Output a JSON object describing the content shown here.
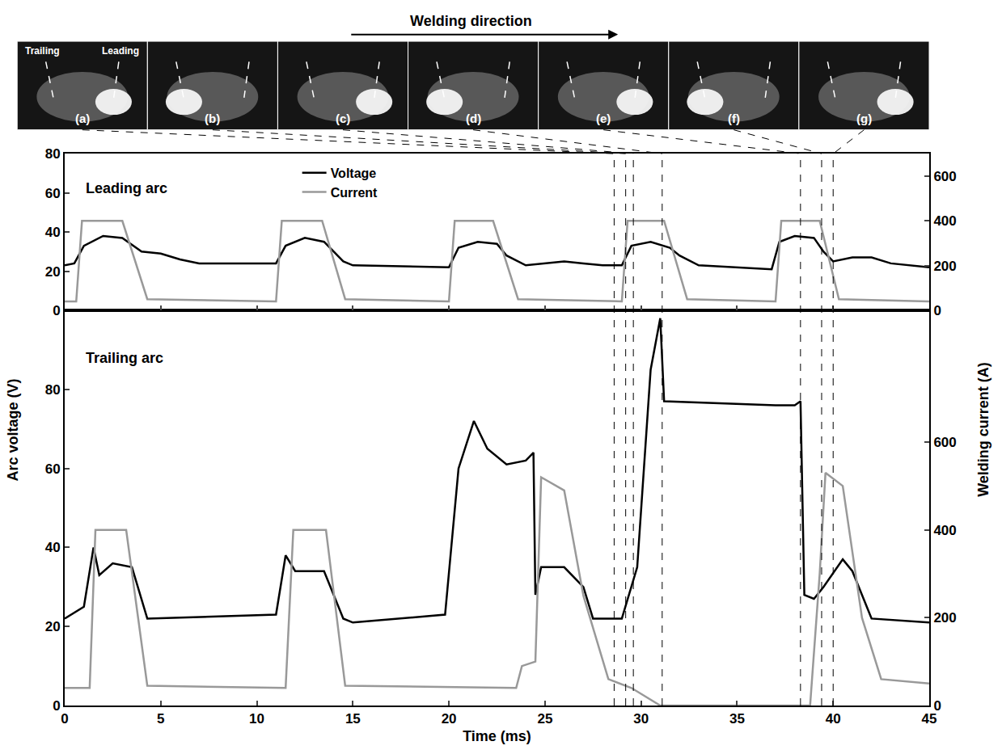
{
  "chart_data": {
    "type": "line",
    "x_label": "Time (ms)",
    "y_label": "Arc voltage (V)",
    "y2_label": "Welding current (A)",
    "xlim": [
      0,
      45
    ],
    "xticks": [
      0,
      5,
      10,
      15,
      20,
      25,
      30,
      35,
      40,
      45
    ],
    "legend": "top",
    "grid": false,
    "panels": [
      {
        "title": "Leading arc",
        "ylim": [
          0,
          80
        ],
        "yticks": [
          0,
          20,
          40,
          60,
          80
        ],
        "y2lim": [
          0,
          700
        ],
        "y2ticks": [
          0,
          200,
          400,
          600
        ],
        "series": [
          {
            "name": "Voltage",
            "color": "#000000",
            "x": [
              0,
              0.5,
              1.0,
              2,
              3,
              4,
              5,
              6,
              7,
              11,
              11.5,
              12.5,
              13.5,
              14.5,
              15,
              20,
              20.5,
              21.5,
              22.5,
              23,
              24,
              25,
              26,
              27,
              28,
              29,
              29.5,
              30.5,
              31.5,
              32,
              33,
              36.8,
              37.2,
              38,
              39,
              39.5,
              40,
              41,
              42,
              43,
              45
            ],
            "values": [
              23,
              24,
              33,
              38,
              37,
              30,
              29,
              26,
              24,
              24,
              33,
              37,
              35,
              25,
              23,
              22,
              32,
              35,
              34,
              28,
              23,
              24,
              25,
              24,
              23,
              23,
              33,
              35,
              32,
              28,
              23,
              21,
              35,
              38,
              37,
              30,
              25,
              27,
              27,
              24,
              22
            ]
          },
          {
            "name": "Current",
            "color": "#999999",
            "axis": "y2",
            "x": [
              0,
              0.6,
              0.9,
              3.0,
              4.3,
              11.0,
              11.3,
              13.4,
              14.6,
              20.0,
              20.3,
              22.3,
              23.6,
              29.0,
              29.3,
              31.2,
              32.4,
              37.0,
              37.3,
              39.3,
              40.3,
              45
            ],
            "values": [
              40,
              40,
              400,
              400,
              50,
              40,
              400,
              400,
              50,
              40,
              400,
              400,
              50,
              40,
              400,
              400,
              50,
              40,
              400,
              400,
              50,
              40
            ]
          }
        ]
      },
      {
        "title": "Trailing arc",
        "ylim": [
          0,
          100
        ],
        "yticks": [
          0,
          20,
          40,
          60,
          80
        ],
        "y2lim": [
          0,
          900
        ],
        "y2ticks": [
          0,
          200,
          400,
          600
        ],
        "series": [
          {
            "name": "Voltage",
            "color": "#000000",
            "x": [
              0,
              1,
              1.5,
              1.8,
              2.5,
              3.5,
              4.3,
              11,
              11.5,
              12,
              13.5,
              14.5,
              15,
              19.8,
              20.5,
              21.3,
              22,
              23,
              24,
              24.4,
              24.5,
              24.8,
              26,
              27,
              27.5,
              29,
              29.8,
              30.5,
              31,
              31.2,
              37,
              38,
              38.3,
              38.5,
              39,
              39.5,
              40.5,
              41,
              42,
              45
            ],
            "values": [
              22,
              25,
              40,
              33,
              36,
              35,
              22,
              23,
              38,
              34,
              34,
              22,
              21,
              23,
              60,
              72,
              65,
              61,
              62,
              64,
              28,
              35,
              35,
              30,
              22,
              22,
              35,
              85,
              98,
              77,
              76,
              76,
              77,
              28,
              27,
              30,
              37,
              34,
              22,
              21
            ]
          },
          {
            "name": "Current",
            "color": "#999999",
            "axis": "y2",
            "x": [
              0,
              1.3,
              1.6,
              3.2,
              4.3,
              11.5,
              11.9,
              13.6,
              14.6,
              23.5,
              23.8,
              24.5,
              24.8,
              26,
              27,
              28.3,
              29.5,
              31,
              38.8,
              39.3,
              39.6,
              40.5,
              41.5,
              42.5,
              45
            ],
            "values": [
              40,
              40,
              400,
              400,
              45,
              40,
              400,
              400,
              45,
              40,
              90,
              100,
              520,
              490,
              250,
              60,
              40,
              0,
              0,
              300,
              530,
              500,
              200,
              60,
              50
            ]
          }
        ]
      }
    ],
    "photo_strip": {
      "title": "Welding direction",
      "electrode_labels": [
        "Trailing",
        "Leading"
      ],
      "frames": [
        {
          "label": "(a)",
          "time": 28.6
        },
        {
          "label": "(b)",
          "time": 29.2
        },
        {
          "label": "(c)",
          "time": 29.6
        },
        {
          "label": "(d)",
          "time": 31.1
        },
        {
          "label": "(e)",
          "time": 38.3
        },
        {
          "label": "(f)",
          "time": 39.4
        },
        {
          "label": "(g)",
          "time": 40.0
        }
      ]
    }
  }
}
